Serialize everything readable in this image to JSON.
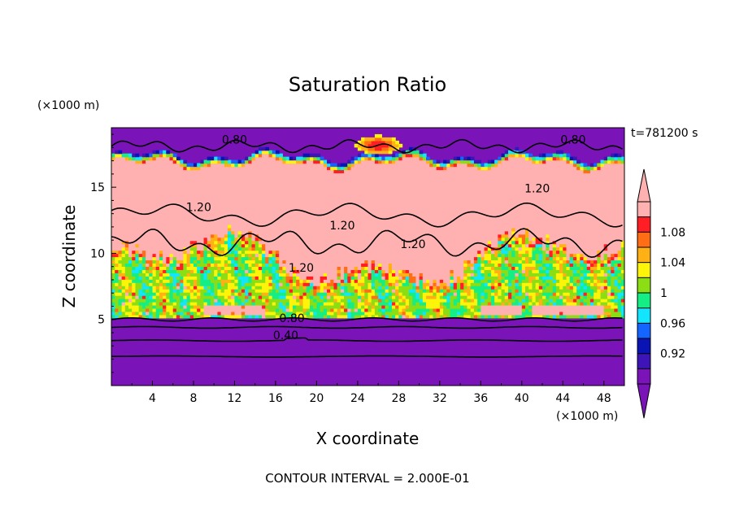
{
  "chart_data": {
    "type": "heatmap",
    "title": "Saturation Ratio",
    "xlabel": "X coordinate",
    "ylabel": "Z coordinate",
    "x_unit": "(×1000 m)",
    "y_unit": "(×1000 m)",
    "time_label": "t=781200 s",
    "footer": "CONTOUR INTERVAL = 2.000E-01",
    "xlim": [
      0,
      50
    ],
    "ylim": [
      0,
      19.5
    ],
    "x_ticks": [
      4,
      8,
      12,
      16,
      20,
      24,
      28,
      32,
      36,
      40,
      44,
      48
    ],
    "x_tick_labels": [
      "4",
      "8",
      "12",
      "16",
      "20",
      "24",
      "28",
      "32",
      "36",
      "40",
      "44",
      "48"
    ],
    "y_ticks": [
      5,
      10,
      15
    ],
    "y_tick_labels": [
      "5",
      "10",
      "15"
    ],
    "colorbar": {
      "levels": [
        0.9,
        0.92,
        0.94,
        0.96,
        0.98,
        1.0,
        1.02,
        1.04,
        1.06,
        1.08,
        1.1
      ],
      "tick_values": [
        0.92,
        0.96,
        1.0,
        1.04,
        1.08
      ],
      "tick_labels": [
        "0.92",
        "0.96",
        "1",
        "1.04",
        "1.08"
      ],
      "colors": [
        "#7b14b8",
        "#3c14b8",
        "#0a14b4",
        "#1464ff",
        "#12e6ff",
        "#14ee84",
        "#8cde14",
        "#fcf50a",
        "#ffb014",
        "#ff6e14",
        "#ff1e23",
        "#ffb0b0"
      ],
      "under_color": "#7b14b8",
      "over_color": "#ffb0b0"
    },
    "contour_labels": [
      {
        "text": "0.80",
        "x": 12.0,
        "y": 18.3
      },
      {
        "text": "0.80",
        "x": 45.0,
        "y": 18.3
      },
      {
        "text": "1.20",
        "x": 8.5,
        "y": 13.2
      },
      {
        "text": "1.20",
        "x": 22.5,
        "y": 11.8
      },
      {
        "text": "1.20",
        "x": 41.5,
        "y": 14.6
      },
      {
        "text": "1.20",
        "x": 29.4,
        "y": 10.4
      },
      {
        "text": "1.20",
        "x": 18.5,
        "y": 8.6
      },
      {
        "text": "0.80",
        "x": 17.6,
        "y": 4.8
      },
      {
        "text": "0.40",
        "x": 17.0,
        "y": 3.5
      }
    ],
    "fields": {
      "upper_dry": {
        "value": 0.88,
        "z_range": [
          17.0,
          19.5
        ]
      },
      "supersaturated_layer": {
        "value": 1.1,
        "z_range": [
          9.5,
          16.8
        ]
      },
      "mixed_cloud_layer": {
        "value_range": [
          0.98,
          1.1
        ],
        "z_range": [
          5.0,
          11.0
        ]
      },
      "lower_dry": {
        "value": 0.88,
        "z_range": [
          0,
          5.0
        ]
      }
    }
  }
}
